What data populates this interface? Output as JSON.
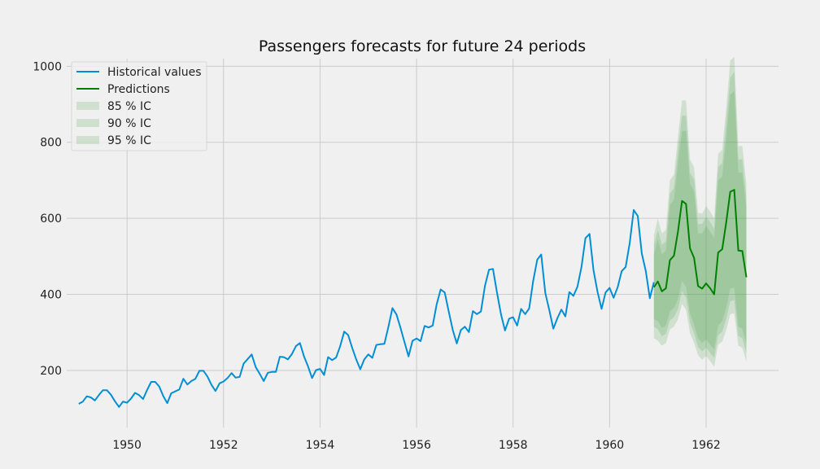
{
  "chart_data": {
    "type": "line",
    "title": "Passengers forecasts for future 24 periods",
    "xlabel": "",
    "ylabel": "",
    "xlim": [
      1948.75,
      1963.5
    ],
    "ylim": [
      50,
      1020
    ],
    "x_ticks": [
      1950,
      1952,
      1954,
      1956,
      1958,
      1960,
      1962
    ],
    "x_tick_labels": [
      "1950",
      "1952",
      "1954",
      "1956",
      "1958",
      "1960",
      "1962"
    ],
    "y_ticks": [
      200,
      400,
      600,
      800,
      1000
    ],
    "y_tick_labels": [
      "200",
      "400",
      "600",
      "800",
      "1000"
    ],
    "grid": true,
    "legend_position": "top-left",
    "colors": {
      "historical": "#008fd5",
      "predictions": "#008000",
      "band": "#4c9e4c",
      "background": "#f0f0f0",
      "grid": "#cbcbcb"
    },
    "legend": [
      {
        "label": "Historical values",
        "kind": "line",
        "color": "#008fd5"
      },
      {
        "label": "Predictions",
        "kind": "line",
        "color": "#008000"
      },
      {
        "label": "85 % IC",
        "kind": "band"
      },
      {
        "label": "90 % IC",
        "kind": "band"
      },
      {
        "label": "95 % IC",
        "kind": "band"
      }
    ],
    "historical": {
      "name": "Historical values",
      "start": [
        1949,
        1
      ],
      "values": [
        112,
        118,
        132,
        129,
        121,
        135,
        148,
        148,
        136,
        119,
        104,
        118,
        115,
        126,
        141,
        135,
        125,
        149,
        170,
        170,
        158,
        133,
        114,
        140,
        145,
        150,
        178,
        163,
        172,
        178,
        199,
        199,
        184,
        162,
        146,
        166,
        171,
        180,
        193,
        181,
        183,
        218,
        230,
        242,
        209,
        191,
        172,
        194,
        196,
        196,
        236,
        235,
        229,
        243,
        264,
        272,
        237,
        211,
        180,
        201,
        204,
        188,
        235,
        227,
        234,
        264,
        302,
        293,
        259,
        229,
        203,
        229,
        242,
        233,
        267,
        269,
        270,
        315,
        364,
        347,
        312,
        274,
        237,
        278,
        284,
        277,
        317,
        313,
        318,
        374,
        413,
        405,
        355,
        306,
        271,
        306,
        315,
        301,
        356,
        348,
        355,
        422,
        465,
        467,
        404,
        347,
        305,
        336,
        340,
        318,
        362,
        348,
        363,
        435,
        491,
        505,
        404,
        359,
        310,
        337,
        360,
        342,
        406,
        396,
        420,
        472,
        548,
        559,
        463,
        407,
        362,
        405,
        417,
        391,
        419,
        461,
        472,
        535,
        622,
        606,
        508,
        461,
        390,
        432
      ]
    },
    "predictions": {
      "name": "Predictions",
      "start": [
        1960,
        12
      ],
      "values": [
        419,
        434,
        408,
        416,
        490,
        502,
        565,
        646,
        638,
        521,
        496,
        422,
        415,
        429,
        416,
        400,
        510,
        519,
        589,
        670,
        675,
        515,
        514,
        445
      ]
    },
    "intervals": [
      {
        "name": "85 % IC",
        "lower": [
          335,
          330,
          312,
          318,
          355,
          365,
          388,
          435,
          420,
          350,
          320,
          285,
          272,
          282,
          268,
          255,
          318,
          330,
          365,
          415,
          418,
          315,
          310,
          270
        ],
        "upper": [
          505,
          545,
          505,
          515,
          635,
          650,
          745,
          830,
          830,
          690,
          672,
          560,
          560,
          580,
          565,
          548,
          700,
          710,
          810,
          925,
          935,
          720,
          720,
          625
        ]
      },
      {
        "name": "90 % IC",
        "lower": [
          315,
          308,
          290,
          296,
          332,
          340,
          362,
          408,
          392,
          326,
          298,
          262,
          250,
          260,
          246,
          233,
          292,
          302,
          335,
          382,
          385,
          290,
          285,
          245
        ],
        "upper": [
          530,
          570,
          530,
          540,
          665,
          680,
          780,
          870,
          870,
          720,
          702,
          585,
          585,
          605,
          590,
          572,
          735,
          745,
          850,
          970,
          985,
          755,
          755,
          655
        ]
      },
      {
        "name": "95 % IC",
        "lower": [
          285,
          278,
          265,
          272,
          308,
          315,
          335,
          375,
          360,
          298,
          272,
          240,
          228,
          238,
          225,
          210,
          268,
          276,
          305,
          348,
          350,
          265,
          260,
          222
        ],
        "upper": [
          555,
          600,
          560,
          570,
          700,
          715,
          815,
          910,
          910,
          755,
          735,
          615,
          612,
          632,
          618,
          600,
          770,
          780,
          890,
          1015,
          1025,
          790,
          790,
          690
        ]
      }
    ]
  }
}
